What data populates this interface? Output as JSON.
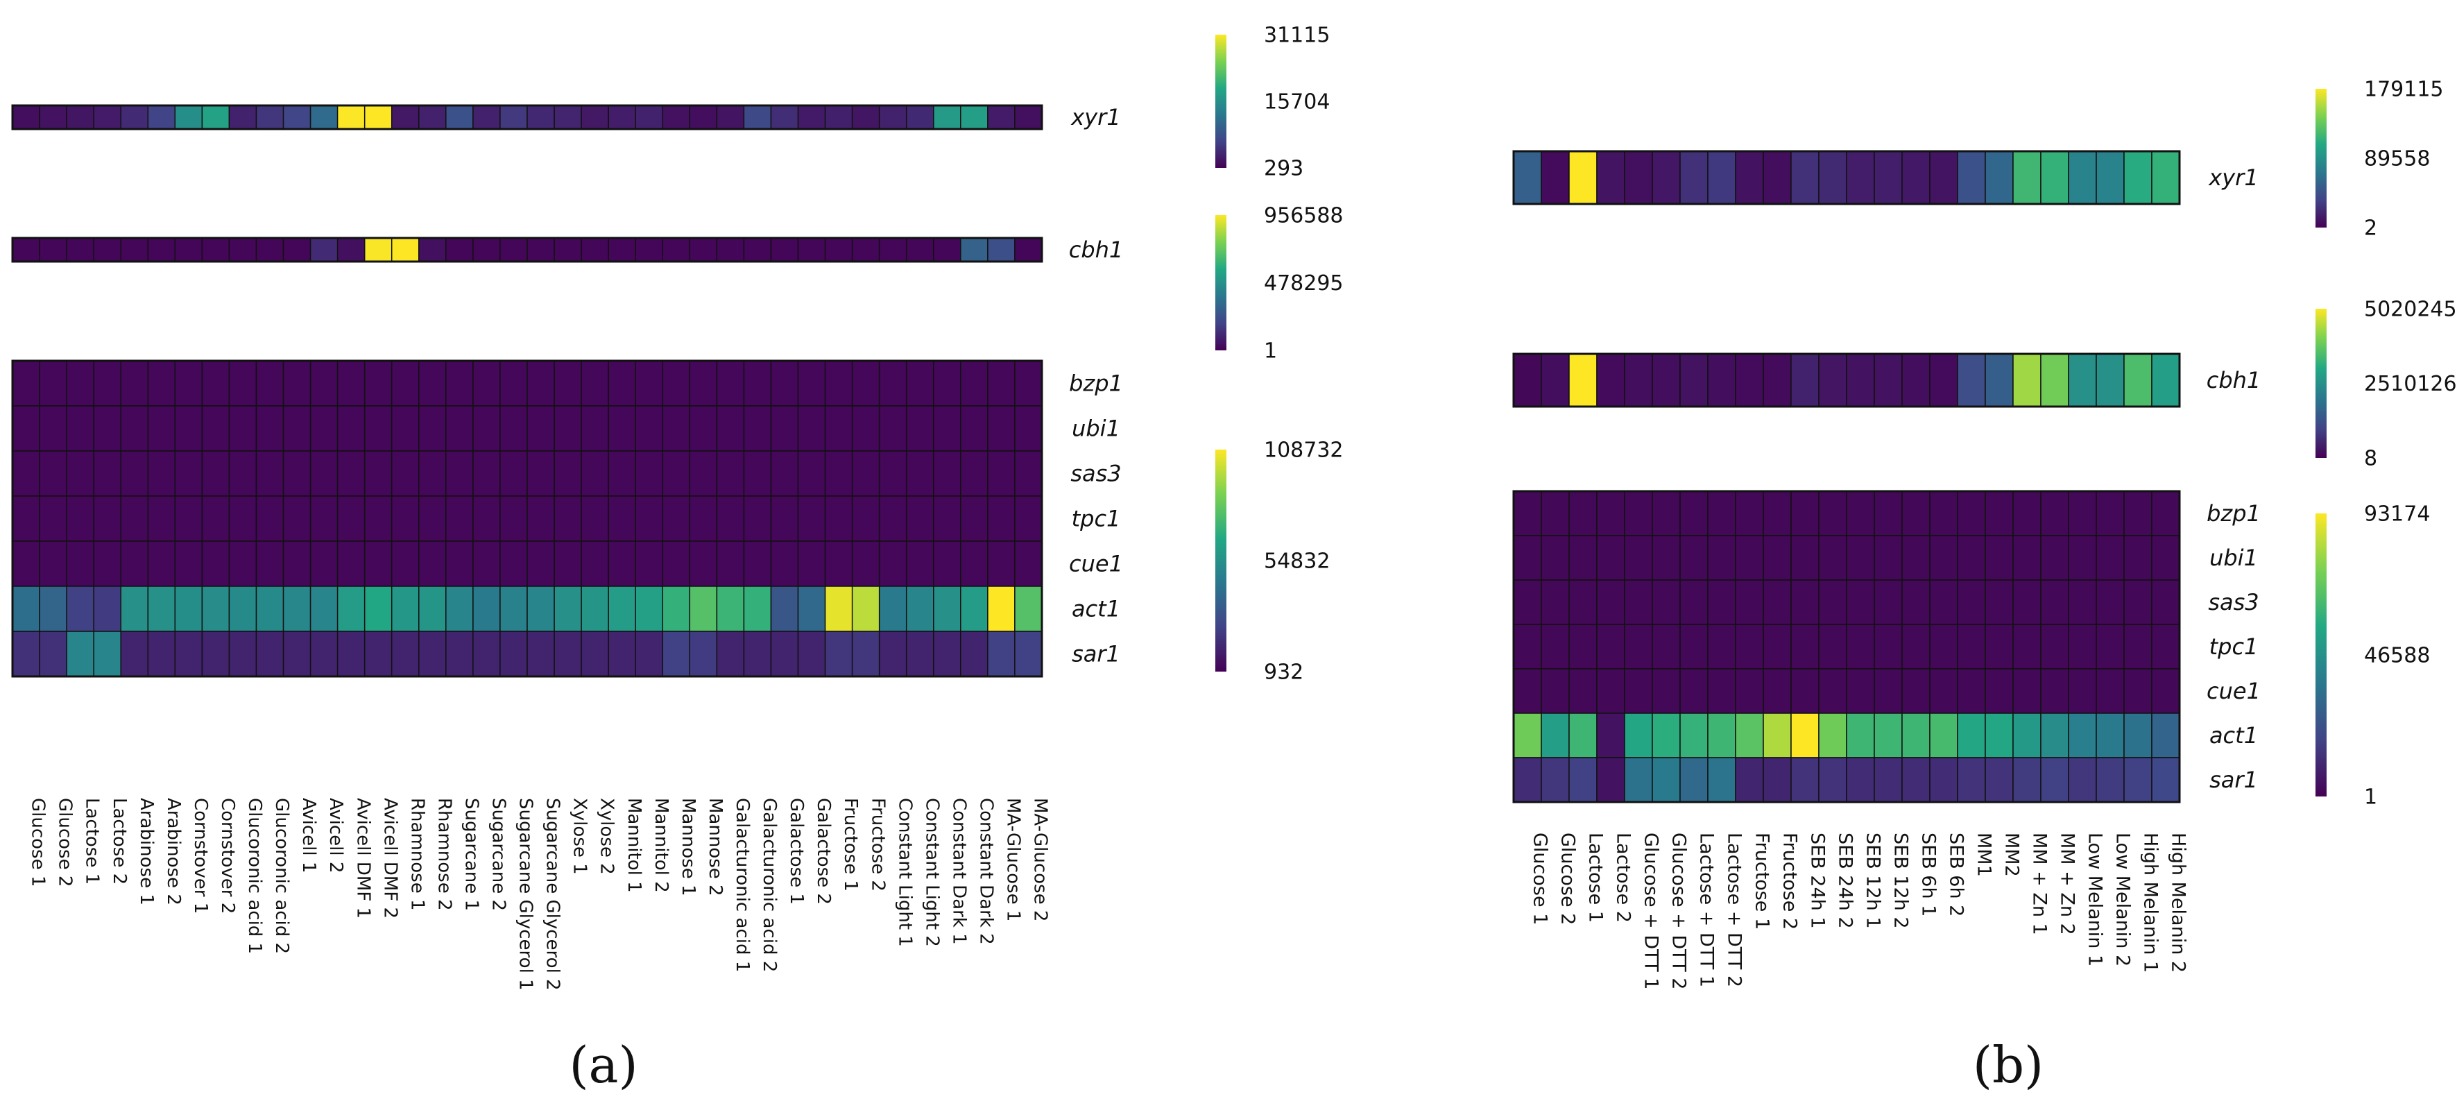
{
  "panel_labels": [
    "(a)",
    "(b)"
  ],
  "chart_data": [
    {
      "type": "heatmap",
      "panel": "(a)",
      "samples": [
        "Glucose 1",
        "Glucose 2",
        "Lactose 1",
        "Lactose 2",
        "Arabinose 1",
        "Arabinose 2",
        "Cornstover 1",
        "Cornstover 2",
        "Glucoronic acid 1",
        "Glucoronic acid 2",
        "Avicell 1",
        "Avicell 2",
        "Avicell DMF 1",
        "Avicell DMF 2",
        "Rhamnose 1",
        "Rhamnose 2",
        "Sugarcane 1",
        "Sugarcane 2",
        "Sugarcane Glycerol 1",
        "Sugarcane Glycerol 2",
        "Xylose 1",
        "Xylose 2",
        "Mannitol 1",
        "Mannitol 2",
        "Mannose 1",
        "Mannose 2",
        "Galacturonic acid 1",
        "Galacturonic acid 2",
        "Galactose 1",
        "Galactose 2",
        "Fructose 1",
        "Fructose 2",
        "Constant Light 1",
        "Constant Light 2",
        "Constant Dark 1",
        "Constant Dark 2",
        "MA-Glucose 1",
        "MA-Glucose 2"
      ],
      "blocks": [
        {
          "genes": [
            "xyr1"
          ],
          "colorbar": {
            "ticks": [
              "31115",
              "15704",
              "293"
            ],
            "min": 293,
            "max": 31115
          },
          "values": [
            [
              1500,
              1900,
              2200,
              2700,
              4200,
              6500,
              15500,
              18000,
              3300,
              5200,
              6700,
              11000,
              31000,
              31115,
              2500,
              3200,
              8000,
              3200,
              5400,
              3900,
              3500,
              2400,
              2900,
              3300,
              1800,
              1500,
              2000,
              7200,
              4400,
              2600,
              3100,
              2200,
              3300,
              4000,
              17000,
              17500,
              2700,
              1600
            ]
          ]
        },
        {
          "genes": [
            "cbh1"
          ],
          "colorbar": {
            "ticks": [
              "956588",
              "478295",
              "1"
            ],
            "min": 1,
            "max": 956588
          },
          "values": [
            [
              15000,
              15000,
              15000,
              15000,
              15000,
              15000,
              15000,
              15000,
              15000,
              15000,
              15000,
              120000,
              40000,
              950000,
              956588,
              40000,
              15000,
              15000,
              15000,
              15000,
              15000,
              15000,
              15000,
              15000,
              15000,
              15000,
              15000,
              15000,
              15000,
              15000,
              15000,
              15000,
              15000,
              15000,
              15000,
              300000,
              230000,
              15000
            ]
          ]
        },
        {
          "genes": [
            "bzp1",
            "ubi1",
            "sas3",
            "tpc1",
            "cue1",
            "act1",
            "sar1"
          ],
          "colorbar": {
            "ticks": [
              "108732",
              "54832",
              "932"
            ],
            "min": 932,
            "max": 108732
          },
          "values": [
            [
              3000,
              3000,
              3000,
              3000,
              3000,
              3000,
              3000,
              3000,
              3000,
              3000,
              3000,
              3000,
              3000,
              3000,
              3000,
              3000,
              3000,
              3000,
              3000,
              3000,
              3000,
              3000,
              3000,
              3000,
              3000,
              3000,
              3000,
              3000,
              3000,
              3000,
              3000,
              3000,
              3000,
              3000,
              3000,
              3000,
              3000,
              3000
            ],
            [
              3000,
              3000,
              3000,
              3000,
              3000,
              3000,
              3000,
              3000,
              3000,
              3000,
              3000,
              3000,
              3000,
              3000,
              3000,
              3000,
              3000,
              3000,
              3000,
              3000,
              3000,
              3000,
              3000,
              3000,
              3000,
              3000,
              3000,
              3000,
              3000,
              3000,
              3000,
              3000,
              3000,
              3000,
              3000,
              3000,
              3000,
              3000
            ],
            [
              3000,
              3000,
              3000,
              3000,
              3000,
              3000,
              3000,
              3000,
              3000,
              3000,
              3000,
              3000,
              3000,
              3000,
              3000,
              3000,
              3000,
              3000,
              3000,
              3000,
              3000,
              3000,
              3000,
              3000,
              3000,
              3000,
              3000,
              3000,
              3000,
              3000,
              3000,
              3000,
              3000,
              3000,
              3000,
              3000,
              3000,
              3000
            ],
            [
              3000,
              3000,
              3000,
              3000,
              3000,
              3000,
              3000,
              3000,
              3000,
              3000,
              3000,
              3000,
              3000,
              3000,
              3000,
              3000,
              3000,
              3000,
              3000,
              3000,
              3000,
              3000,
              3000,
              3000,
              3000,
              3000,
              3000,
              3000,
              3000,
              3000,
              3000,
              3000,
              3000,
              3000,
              3000,
              3000,
              3000,
              3000
            ],
            [
              3000,
              3000,
              3000,
              3000,
              3000,
              3000,
              3000,
              3000,
              3000,
              3000,
              3000,
              3000,
              3000,
              3000,
              3000,
              3000,
              3000,
              3000,
              3000,
              3000,
              3000,
              3000,
              3000,
              3000,
              3000,
              3000,
              3000,
              3000,
              3000,
              3000,
              3000,
              3000,
              3000,
              3000,
              3000,
              3000,
              3000,
              3000
            ],
            [
              40000,
              36000,
              22000,
              20000,
              55000,
              55000,
              54000,
              53000,
              52000,
              52000,
              51000,
              50000,
              60000,
              65000,
              58000,
              57000,
              50000,
              45000,
              48000,
              50000,
              55000,
              57000,
              60000,
              62000,
              70000,
              78000,
              72000,
              70000,
              30000,
              38000,
              105000,
              98000,
              45000,
              50000,
              55000,
              60000,
              108732,
              78000
            ],
            [
              16000,
              16000,
              50000,
              50000,
              12000,
              12000,
              12000,
              12000,
              12000,
              12000,
              12000,
              12000,
              12000,
              12000,
              12000,
              12000,
              12000,
              12000,
              12000,
              12000,
              12000,
              12000,
              12000,
              12000,
              22000,
              20000,
              12000,
              12000,
              12000,
              12000,
              18000,
              18000,
              12000,
              12000,
              12000,
              12000,
              22000,
              22000
            ]
          ]
        }
      ]
    },
    {
      "type": "heatmap",
      "panel": "(b)",
      "samples": [
        "Glucose 1",
        "Glucose 2",
        "Lactose 1",
        "Lactose 2",
        "Glucose + DTT 1",
        "Glucose + DTT 2",
        "Lactose + DTT 1",
        "Lactose + DTT 2",
        "Fructose 1",
        "Fructose 2",
        "SEB 24h 1",
        "SEB 24h 2",
        "SEB 12h 1",
        "SEB 12h 2",
        "SEB 6h 1",
        "SEB 6h 2",
        "MM1",
        "MM2",
        "MM + Zn 1",
        "MM + Zn 2",
        "Low Melanin 1",
        "Low Melanin 2",
        "High Melanin 1",
        "High Melanin 2"
      ],
      "blocks": [
        {
          "genes": [
            "xyr1"
          ],
          "colorbar": {
            "ticks": [
              "179115",
              "89558",
              "2"
            ],
            "min": 2,
            "max": 179115
          },
          "values": [
            [
              55000,
              5000,
              179115,
              10000,
              8000,
              12000,
              25000,
              30000,
              9000,
              7000,
              25000,
              22000,
              15000,
              16000,
              13000,
              10000,
              45000,
              60000,
              120000,
              115000,
              80000,
              80000,
              110000,
              115000
            ]
          ]
        },
        {
          "genes": [
            "cbh1"
          ],
          "colorbar": {
            "ticks": [
              "5020245",
              "2510126",
              "8"
            ],
            "min": 8,
            "max": 5020245
          },
          "values": [
            [
              100000,
              200000,
              5020245,
              150000,
              200000,
              200000,
              250000,
              200000,
              150000,
              150000,
              500000,
              300000,
              250000,
              250000,
              200000,
              150000,
              1200000,
              1500000,
              4300000,
              3900000,
              2500000,
              2500000,
              3500000,
              2800000
            ]
          ]
        },
        {
          "genes": [
            "bzp1",
            "ubi1",
            "sas3",
            "tpc1",
            "cue1",
            "act1",
            "sar1"
          ],
          "colorbar": {
            "ticks": [
              "93174",
              "46588",
              "1"
            ],
            "min": 1,
            "max": 93174
          },
          "values": [
            [
              2000,
              2000,
              2000,
              2000,
              2000,
              2000,
              2000,
              2000,
              2000,
              2000,
              2000,
              2000,
              2000,
              2000,
              2000,
              2000,
              2000,
              2000,
              2000,
              2000,
              2000,
              2000,
              2000,
              2000
            ],
            [
              2000,
              2000,
              2000,
              2000,
              2000,
              2000,
              2000,
              2000,
              2000,
              2000,
              2000,
              2000,
              2000,
              2000,
              2000,
              2000,
              2000,
              2000,
              2000,
              2000,
              2000,
              2000,
              2000,
              2000
            ],
            [
              2000,
              2000,
              2000,
              2000,
              2000,
              2000,
              2000,
              2000,
              2000,
              2000,
              2000,
              2000,
              2000,
              2000,
              2000,
              2000,
              2000,
              2000,
              2000,
              2000,
              2000,
              2000,
              2000,
              2000
            ],
            [
              2000,
              2000,
              2000,
              2000,
              2000,
              2000,
              2000,
              2000,
              2000,
              2000,
              2000,
              2000,
              2000,
              2000,
              2000,
              2000,
              2000,
              2000,
              2000,
              2000,
              2000,
              2000,
              2000,
              2000
            ],
            [
              2000,
              2000,
              2000,
              2000,
              2000,
              2000,
              2000,
              2000,
              2000,
              2000,
              2000,
              2000,
              2000,
              2000,
              2000,
              2000,
              2000,
              2000,
              2000,
              2000,
              2000,
              2000,
              2000,
              2000
            ],
            [
              72000,
              52000,
              62000,
              5000,
              55000,
              58000,
              60000,
              62000,
              68000,
              82000,
              93174,
              72000,
              62000,
              62000,
              62000,
              64000,
              55000,
              55000,
              50000,
              45000,
              40000,
              38000,
              35000,
              30000
            ],
            [
              12000,
              15000,
              18000,
              5000,
              35000,
              38000,
              32000,
              36000,
              10000,
              10000,
              14000,
              14000,
              12000,
              12000,
              12000,
              12000,
              14000,
              14000,
              16000,
              18000,
              15000,
              16000,
              18000,
              20000
            ]
          ]
        }
      ]
    }
  ]
}
